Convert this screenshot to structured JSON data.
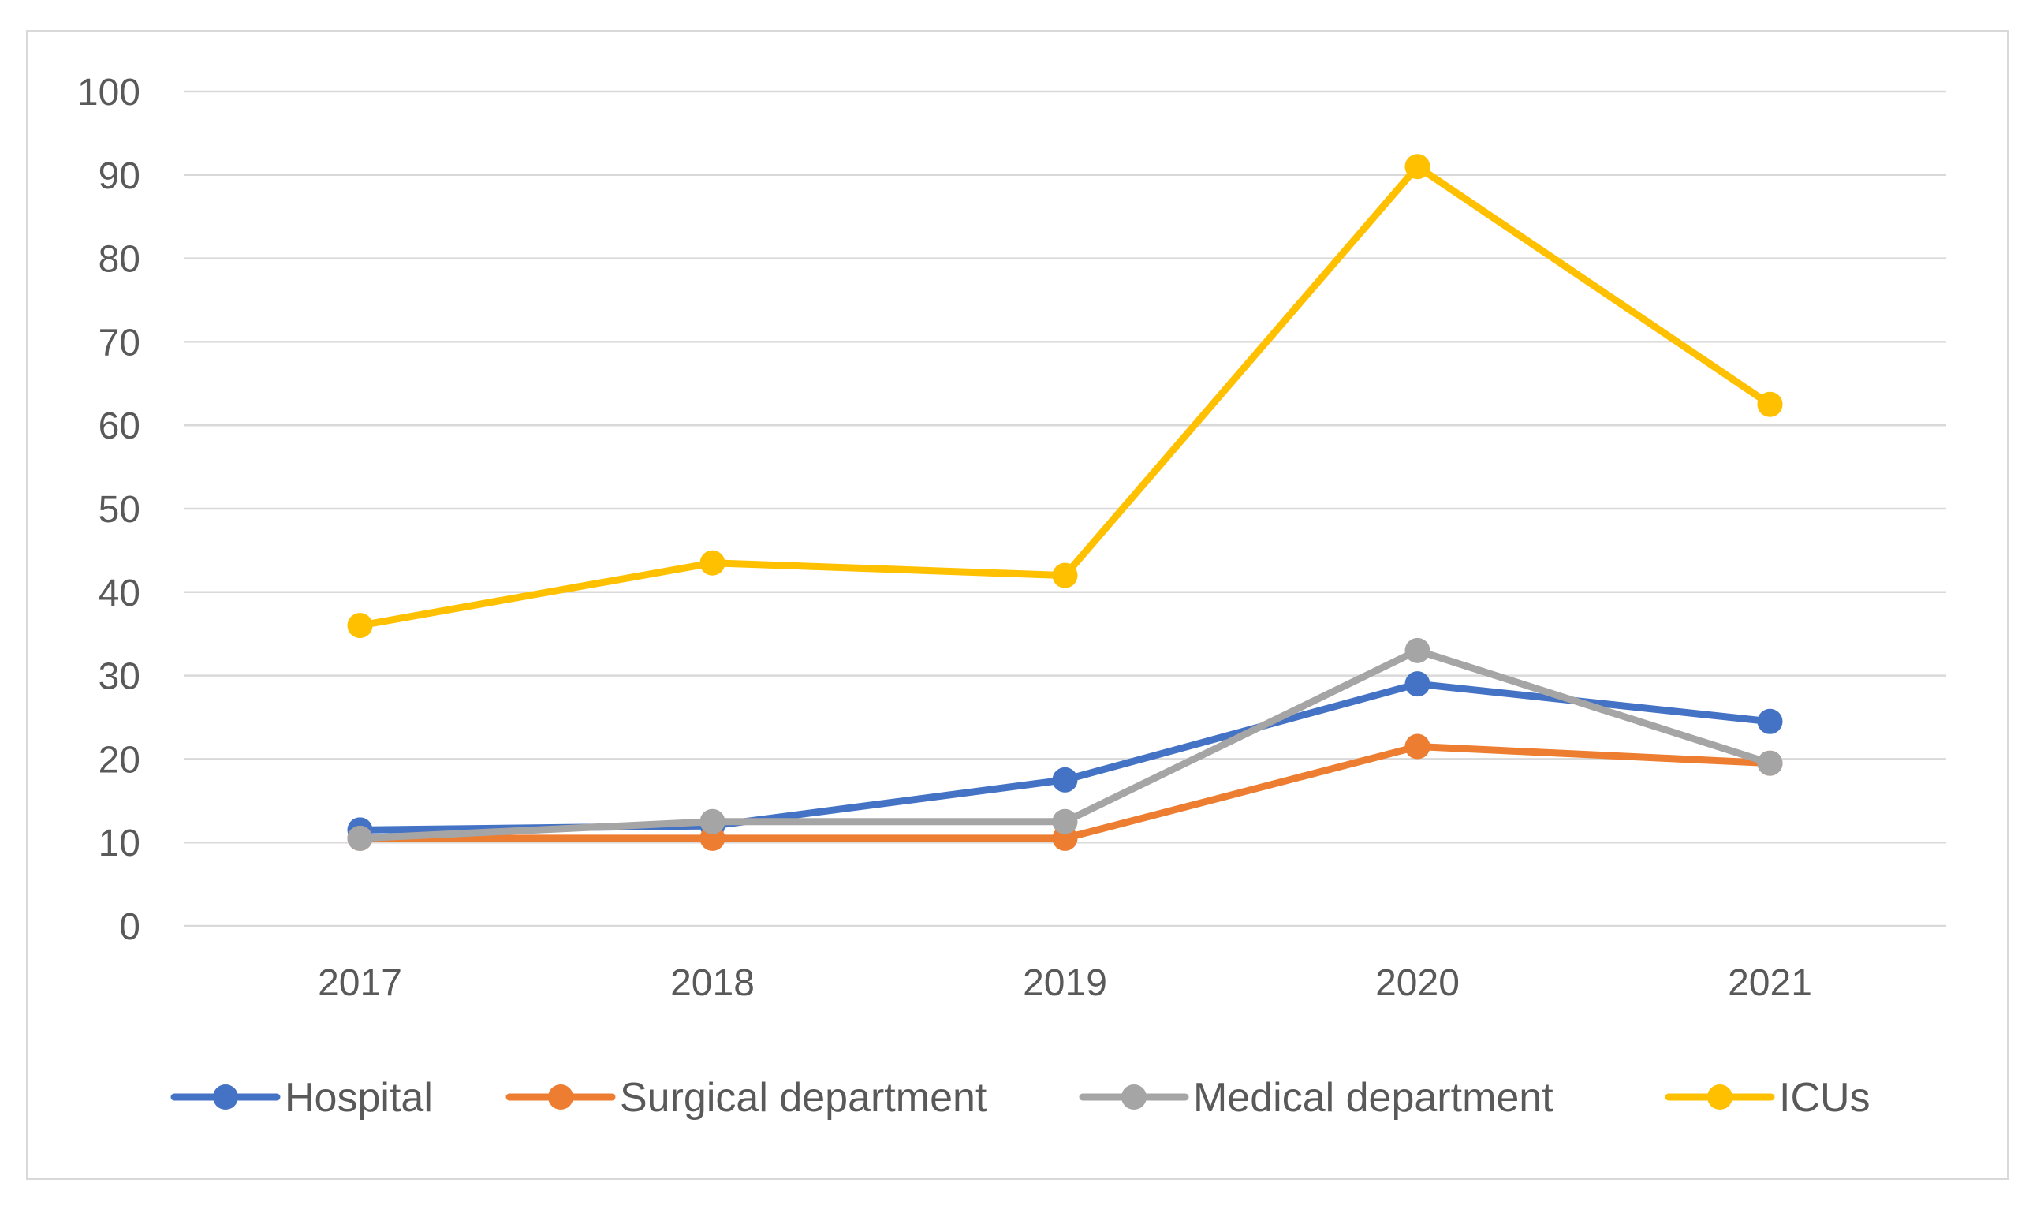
{
  "chart_data": {
    "type": "line",
    "title": "",
    "xlabel": "",
    "ylabel": "",
    "categories": [
      "2017",
      "2018",
      "2019",
      "2020",
      "2021"
    ],
    "ylim": [
      0,
      100
    ],
    "yticks": [
      0,
      10,
      20,
      30,
      40,
      50,
      60,
      70,
      80,
      90,
      100
    ],
    "grid": true,
    "legend_position": "bottom",
    "series": [
      {
        "name": "Hospital",
        "color": "#4472c4",
        "values": [
          11.5,
          12.0,
          17.5,
          29.0,
          24.5
        ]
      },
      {
        "name": "Surgical department",
        "color": "#ed7d31",
        "values": [
          10.5,
          10.5,
          10.5,
          21.5,
          19.5
        ]
      },
      {
        "name": "Medical department",
        "color": "#a5a5a5",
        "values": [
          10.5,
          12.5,
          12.5,
          33.0,
          19.5
        ]
      },
      {
        "name": "ICUs",
        "color": "#ffc000",
        "values": [
          36.0,
          43.5,
          42.0,
          91.0,
          62.5
        ]
      }
    ]
  }
}
